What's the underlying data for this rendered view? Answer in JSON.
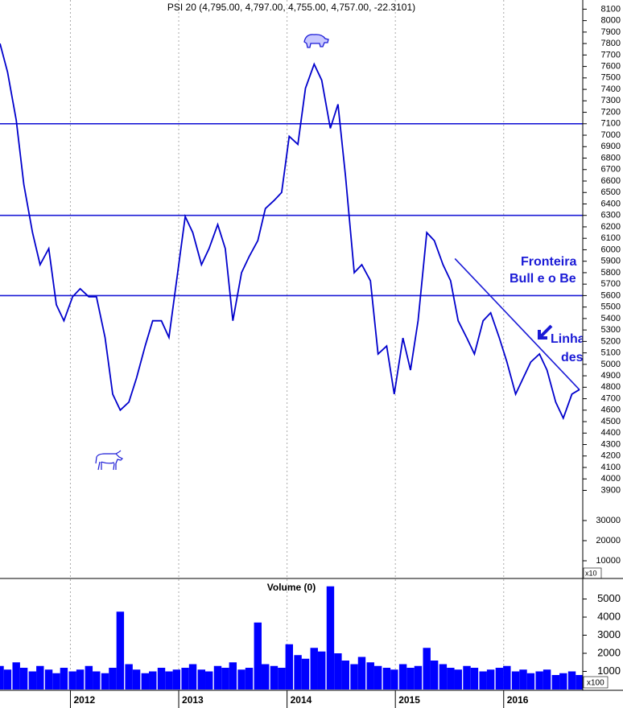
{
  "chart_data": [
    {
      "type": "line",
      "title": "PSI 20 (4,795.00, 4,797.00, 4,755.00, 4,757.00, -22.3101)",
      "x": [
        2011.35,
        2011.42,
        2011.5,
        2011.57,
        2011.65,
        2011.72,
        2011.8,
        2011.87,
        2011.94,
        2012.02,
        2012.09,
        2012.17,
        2012.24,
        2012.32,
        2012.39,
        2012.46,
        2012.54,
        2012.61,
        2012.69,
        2012.76,
        2012.84,
        2012.91,
        2012.98,
        2013.06,
        2013.13,
        2013.21,
        2013.28,
        2013.36,
        2013.43,
        2013.5,
        2013.58,
        2013.65,
        2013.73,
        2013.8,
        2013.88,
        2013.95,
        2014.02,
        2014.1,
        2014.17,
        2014.25,
        2014.32,
        2014.4,
        2014.47,
        2014.54,
        2014.62,
        2014.69,
        2014.77,
        2014.84,
        2014.92,
        2014.99,
        2015.07,
        2015.14,
        2015.21,
        2015.29,
        2015.36,
        2015.44,
        2015.51,
        2015.58,
        2015.66,
        2015.73,
        2015.81,
        2015.88,
        2015.96,
        2016.03,
        2016.11,
        2016.18,
        2016.25,
        2016.33,
        2016.4,
        2016.48,
        2016.55,
        2016.63,
        2016.7
      ],
      "series": [
        {
          "name": "PSI 20",
          "color": "#0000cc",
          "values": [
            7800,
            7550,
            7130,
            6570,
            6150,
            5870,
            6010,
            5520,
            5380,
            5590,
            5660,
            5590,
            5590,
            5235,
            4740,
            4600,
            4670,
            4880,
            5160,
            5380,
            5380,
            5235,
            5730,
            6290,
            6150,
            5870,
            6010,
            6220,
            6010,
            5380,
            5800,
            5940,
            6080,
            6360,
            6430,
            6500,
            6990,
            6920,
            7410,
            7620,
            7480,
            7060,
            7270,
            6640,
            5800,
            5870,
            5730,
            5090,
            5160,
            4740,
            5230,
            4950,
            5380,
            6150,
            6080,
            5870,
            5730,
            5380,
            5230,
            5090,
            5380,
            5450,
            5230,
            5020,
            4740,
            4880,
            5020,
            5090,
            4950,
            4670,
            4530,
            4740,
            4780
          ]
        }
      ],
      "ylim": [
        3110,
        8180
      ],
      "yticks": [
        8100,
        8000,
        7900,
        7800,
        7700,
        7600,
        7500,
        7400,
        7300,
        7200,
        7100,
        7000,
        6900,
        6800,
        6700,
        6600,
        6500,
        6400,
        6300,
        6200,
        6100,
        6000,
        5900,
        5800,
        5700,
        5600,
        5500,
        5400,
        5300,
        5200,
        5100,
        5000,
        4900,
        4800,
        4700,
        4600,
        4500,
        4400,
        4300,
        4200,
        4100,
        4000,
        3900
      ],
      "y2lim": [
        0,
        288800
      ],
      "y2ticks": [
        30000,
        20000,
        10000
      ],
      "y2_unit": "x10",
      "hlines": [
        7100,
        6300,
        5600
      ],
      "line_color": "#1a1ad6",
      "trendline": {
        "x": [
          2015.55,
          2016.7
        ],
        "values": [
          5923,
          4778
        ]
      },
      "annotations": [
        "Fronteira",
        "Bull e o Be",
        "Linha",
        "dese"
      ],
      "grid": true
    },
    {
      "type": "bar",
      "title": "Volume (0)",
      "x": [
        2011.35,
        2011.42,
        2011.5,
        2011.57,
        2011.65,
        2011.72,
        2011.8,
        2011.87,
        2011.94,
        2012.02,
        2012.09,
        2012.17,
        2012.24,
        2012.32,
        2012.39,
        2012.46,
        2012.54,
        2012.61,
        2012.69,
        2012.76,
        2012.84,
        2012.91,
        2012.98,
        2013.06,
        2013.13,
        2013.21,
        2013.28,
        2013.36,
        2013.43,
        2013.5,
        2013.58,
        2013.65,
        2013.73,
        2013.8,
        2013.88,
        2013.95,
        2014.02,
        2014.1,
        2014.17,
        2014.25,
        2014.32,
        2014.4,
        2014.47,
        2014.54,
        2014.62,
        2014.69,
        2014.77,
        2014.84,
        2014.92,
        2014.99,
        2015.07,
        2015.14,
        2015.21,
        2015.29,
        2015.36,
        2015.44,
        2015.51,
        2015.58,
        2015.66,
        2015.73,
        2015.81,
        2015.88,
        2015.96,
        2016.03,
        2016.11,
        2016.18,
        2016.25,
        2016.33,
        2016.4,
        2016.48,
        2016.55,
        2016.63,
        2016.7
      ],
      "values": [
        1300,
        1100,
        1500,
        1200,
        1000,
        1300,
        1100,
        900,
        1200,
        1000,
        1100,
        1300,
        1000,
        900,
        1200,
        4300,
        1400,
        1100,
        900,
        1000,
        1200,
        1000,
        1100,
        1200,
        1400,
        1100,
        1000,
        1300,
        1200,
        1500,
        1100,
        1200,
        3700,
        1400,
        1300,
        1200,
        2500,
        1900,
        1700,
        2300,
        2100,
        5700,
        2000,
        1600,
        1400,
        1800,
        1500,
        1300,
        1200,
        1100,
        1400,
        1200,
        1300,
        2300,
        1600,
        1400,
        1200,
        1100,
        1300,
        1200,
        1000,
        1100,
        1200,
        1300,
        1000,
        1100,
        900,
        1000,
        1100,
        800,
        900,
        1000,
        800
      ],
      "color": "#0000ff",
      "ylim": [
        0,
        6090
      ],
      "yticks": [
        5000,
        4000,
        3000,
        2000,
        1000
      ],
      "y_unit": "x100",
      "xlim": [
        2011.35,
        2016.73
      ],
      "xticks": [
        2012,
        2013,
        2014,
        2015,
        2016
      ],
      "grid": true
    }
  ]
}
